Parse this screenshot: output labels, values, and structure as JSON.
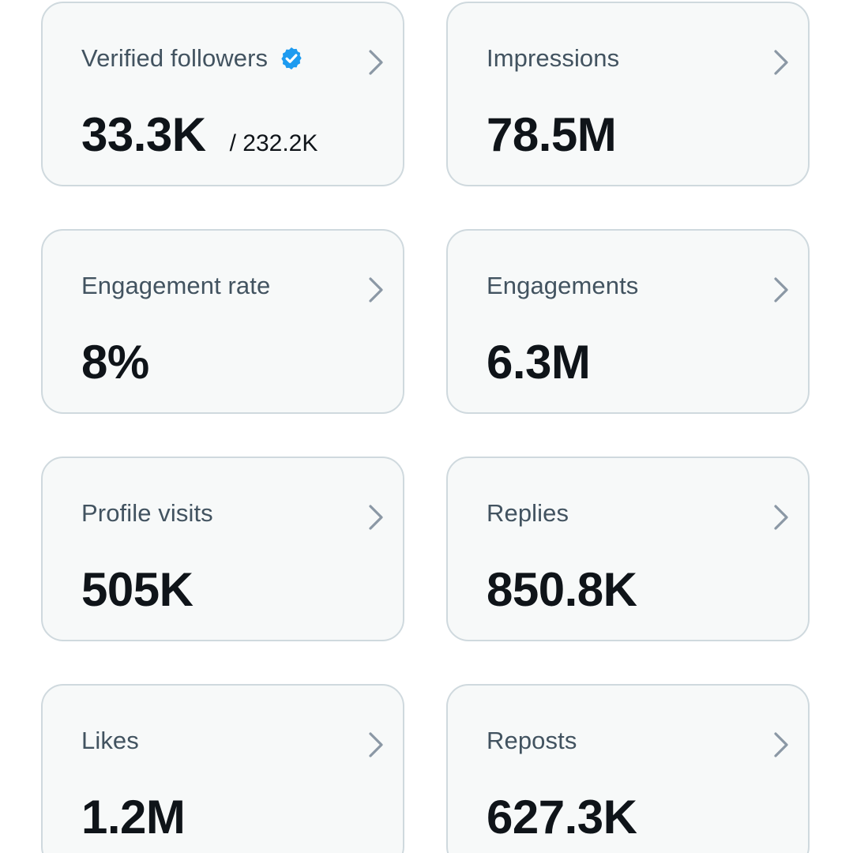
{
  "colors": {
    "card_background": "#f7f9f9",
    "card_border": "#cfd9de",
    "label_text": "#425360",
    "value_text": "#0f1419",
    "chevron": "#8b98a5",
    "verified_badge": "#1d9bf0"
  },
  "icons": {
    "verified": "verified-badge-icon",
    "chevron": "chevron-right-icon"
  },
  "metrics": [
    {
      "label": "Verified followers",
      "value": "33.3K",
      "subvalue": "/ 232.2K",
      "verified": true
    },
    {
      "label": "Impressions",
      "value": "78.5M"
    },
    {
      "label": "Engagement rate",
      "value": "8%"
    },
    {
      "label": "Engagements",
      "value": "6.3M"
    },
    {
      "label": "Profile visits",
      "value": "505K"
    },
    {
      "label": "Replies",
      "value": "850.8K"
    },
    {
      "label": "Likes",
      "value": "1.2M"
    },
    {
      "label": "Reposts",
      "value": "627.3K"
    }
  ]
}
